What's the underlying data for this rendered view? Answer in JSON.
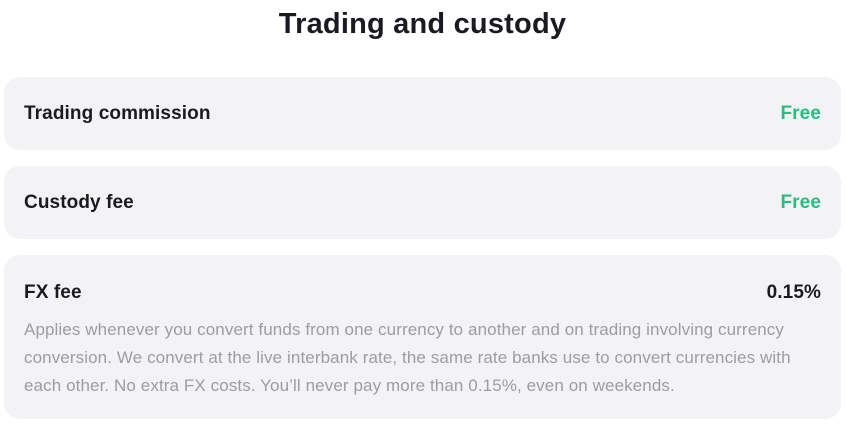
{
  "section": {
    "title": "Trading and custody"
  },
  "colors": {
    "card_bg": "#f3f3f5",
    "accent_green": "#28be80",
    "text_dark": "#1a1a22",
    "text_gray": "#9c9ca4"
  },
  "fees": [
    {
      "label": "Trading commission",
      "value": "Free",
      "highlighted": true,
      "description": ""
    },
    {
      "label": "Custody fee",
      "value": "Free",
      "highlighted": true,
      "description": ""
    },
    {
      "label": "FX fee",
      "value": "0.15%",
      "highlighted": false,
      "description": "Applies whenever you convert funds from one currency to another and on trading involving currency conversion. We convert at the live interbank rate, the same rate banks use to convert currencies with each other. No extra FX costs. You’ll never pay more than 0.15%, even on weekends."
    }
  ]
}
